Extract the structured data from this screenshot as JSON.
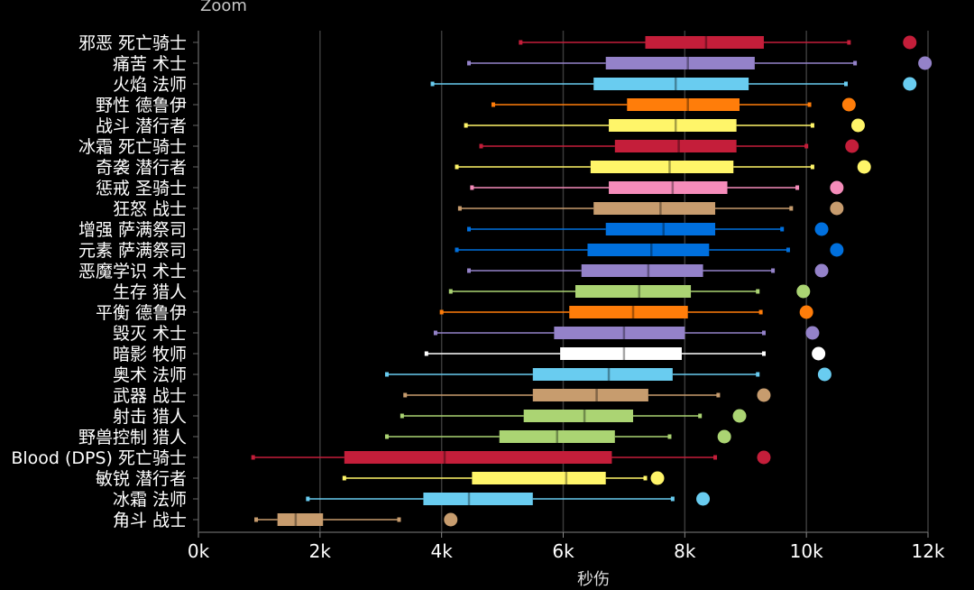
{
  "chart_data": {
    "type": "boxplot",
    "title": "",
    "zoom_label": "Zoom",
    "xlabel": "秒伤",
    "ylabel": "",
    "xlim": [
      0,
      12000
    ],
    "x_ticks": [
      0,
      2000,
      4000,
      6000,
      8000,
      10000,
      12000
    ],
    "x_tick_labels": [
      "0k",
      "2k",
      "4k",
      "6k",
      "8k",
      "10k",
      "12k"
    ],
    "grid": "vertical",
    "series": [
      {
        "name": "邪恶 死亡骑士",
        "color": "#c41e3a",
        "min": 5300,
        "q1": 7350,
        "median": 8350,
        "q3": 9300,
        "max": 10700,
        "outlier": 11700
      },
      {
        "name": "痛苦 术士",
        "color": "#9482c9",
        "min": 4450,
        "q1": 6700,
        "median": 8050,
        "q3": 9150,
        "max": 10800,
        "outlier": 11950
      },
      {
        "name": "火焰 法师",
        "color": "#69ccf0",
        "min": 3850,
        "q1": 6500,
        "median": 7850,
        "q3": 9050,
        "max": 10650,
        "outlier": 11700
      },
      {
        "name": "野性 德鲁伊",
        "color": "#ff7d0a",
        "min": 4850,
        "q1": 7050,
        "median": 8050,
        "q3": 8900,
        "max": 10050,
        "outlier": 10700
      },
      {
        "name": "战斗 潜行者",
        "color": "#fff569",
        "min": 4400,
        "q1": 6750,
        "median": 7850,
        "q3": 8850,
        "max": 10100,
        "outlier": 10850
      },
      {
        "name": "冰霜 死亡骑士",
        "color": "#c41e3a",
        "min": 4650,
        "q1": 6850,
        "median": 7900,
        "q3": 8850,
        "max": 10000,
        "outlier": 10750
      },
      {
        "name": "奇袭 潜行者",
        "color": "#fff569",
        "min": 4250,
        "q1": 6450,
        "median": 7750,
        "q3": 8800,
        "max": 10100,
        "outlier": 10950
      },
      {
        "name": "惩戒 圣骑士",
        "color": "#f58cba",
        "min": 4500,
        "q1": 6750,
        "median": 7800,
        "q3": 8700,
        "max": 9850,
        "outlier": 10500
      },
      {
        "name": "狂怒 战士",
        "color": "#c79c6e",
        "min": 4300,
        "q1": 6500,
        "median": 7600,
        "q3": 8500,
        "max": 9750,
        "outlier": 10500
      },
      {
        "name": "增强 萨满祭司",
        "color": "#0070de",
        "min": 4450,
        "q1": 6700,
        "median": 7650,
        "q3": 8500,
        "max": 9600,
        "outlier": 10250
      },
      {
        "name": "元素 萨满祭司",
        "color": "#0070de",
        "min": 4250,
        "q1": 6400,
        "median": 7450,
        "q3": 8400,
        "max": 9700,
        "outlier": 10500
      },
      {
        "name": "恶魔学识 术士",
        "color": "#9482c9",
        "min": 4450,
        "q1": 6300,
        "median": 7400,
        "q3": 8300,
        "max": 9450,
        "outlier": 10250
      },
      {
        "name": "生存 猎人",
        "color": "#abd473",
        "min": 4150,
        "q1": 6200,
        "median": 7250,
        "q3": 8100,
        "max": 9200,
        "outlier": 9950
      },
      {
        "name": "平衡 德鲁伊",
        "color": "#ff7d0a",
        "min": 4000,
        "q1": 6100,
        "median": 7150,
        "q3": 8050,
        "max": 9250,
        "outlier": 10000
      },
      {
        "name": "毁灭 术士",
        "color": "#9482c9",
        "min": 3900,
        "q1": 5850,
        "median": 7000,
        "q3": 8000,
        "max": 9300,
        "outlier": 10100
      },
      {
        "name": "暗影 牧师",
        "color": "#ffffff",
        "min": 3750,
        "q1": 5950,
        "median": 7000,
        "q3": 7950,
        "max": 9300,
        "outlier": 10200
      },
      {
        "name": "奥术 法师",
        "color": "#69ccf0",
        "min": 3100,
        "q1": 5500,
        "median": 6750,
        "q3": 7800,
        "max": 9200,
        "outlier": 10300
      },
      {
        "name": "武器 战士",
        "color": "#c79c6e",
        "min": 3400,
        "q1": 5500,
        "median": 6550,
        "q3": 7400,
        "max": 8550,
        "outlier": 9300
      },
      {
        "name": "射击 猎人",
        "color": "#abd473",
        "min": 3350,
        "q1": 5350,
        "median": 6350,
        "q3": 7150,
        "max": 8250,
        "outlier": 8900
      },
      {
        "name": "野兽控制 猎人",
        "color": "#abd473",
        "min": 3100,
        "q1": 4950,
        "median": 5900,
        "q3": 6850,
        "max": 7750,
        "outlier": 8650
      },
      {
        "name": "Blood (DPS) 死亡骑士",
        "color": "#c41e3a",
        "min": 900,
        "q1": 2400,
        "median": 4050,
        "q3": 6800,
        "max": 8500,
        "outlier": 9300
      },
      {
        "name": "敏锐 潜行者",
        "color": "#fff569",
        "min": 2400,
        "q1": 4500,
        "median": 6050,
        "q3": 6700,
        "max": 7350,
        "outlier": 7550
      },
      {
        "name": "冰霜 法师",
        "color": "#69ccf0",
        "min": 1800,
        "q1": 3700,
        "median": 4450,
        "q3": 5500,
        "max": 7800,
        "outlier": 8300
      },
      {
        "name": "角斗 战士",
        "color": "#c79c6e",
        "min": 950,
        "q1": 1300,
        "median": 1600,
        "q3": 2050,
        "max": 3300,
        "outlier": 4150
      }
    ]
  }
}
